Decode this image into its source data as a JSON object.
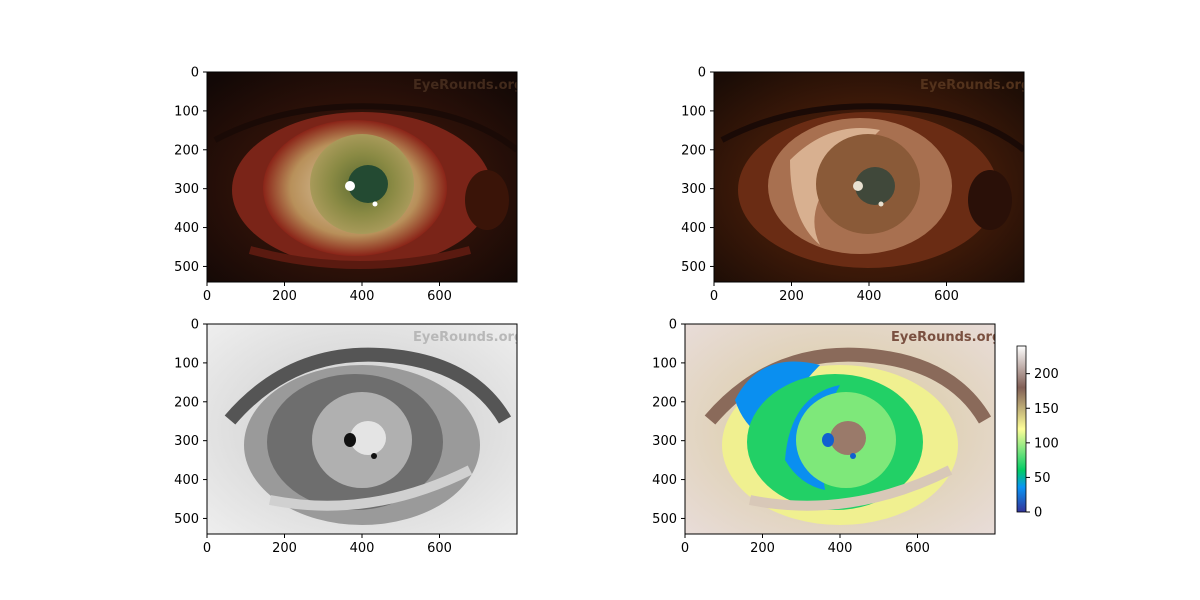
{
  "chart_data": [
    {
      "type": "image",
      "panel": "original-photo",
      "watermark": "EyeRounds.org",
      "x_ticks": [
        0,
        200,
        400,
        600
      ],
      "y_ticks": [
        0,
        100,
        200,
        300,
        400,
        500
      ],
      "xlim": [
        0,
        800
      ],
      "ylim": [
        540,
        0
      ],
      "colors": {
        "background": "#1e0e08",
        "iris": "#8a8a44",
        "sclera": "#d8c8a8",
        "pupil": "#234a32"
      }
    },
    {
      "type": "image",
      "panel": "color-quantized-photo",
      "watermark": "EyeRounds.org",
      "x_ticks": [
        0,
        200,
        400,
        600
      ],
      "y_ticks": [
        0,
        100,
        200,
        300,
        400,
        500
      ],
      "xlim": [
        0,
        800
      ],
      "ylim": [
        540,
        0
      ],
      "colors": {
        "background": "#2a1208",
        "iris": "#8a5a38",
        "sclera": "#c8a080",
        "pupil": "#40483a"
      }
    },
    {
      "type": "heatmap",
      "panel": "grayscale-segmentation",
      "colormap": "gray",
      "watermark": "EyeRounds.org",
      "x_ticks": [
        0,
        200,
        400,
        600
      ],
      "y_ticks": [
        0,
        100,
        200,
        300,
        400,
        500
      ],
      "xlim": [
        0,
        800
      ],
      "ylim": [
        540,
        0
      ]
    },
    {
      "type": "heatmap",
      "panel": "terrain-segmentation",
      "colormap": "terrain",
      "watermark": "EyeRounds.org",
      "x_ticks": [
        0,
        200,
        400,
        600
      ],
      "y_ticks": [
        0,
        100,
        200,
        300,
        400,
        500
      ],
      "xlim": [
        0,
        800
      ],
      "ylim": [
        540,
        0
      ],
      "colorbar": {
        "ticks": [
          0,
          50,
          100,
          150,
          200
        ],
        "range": [
          0,
          240
        ]
      }
    }
  ]
}
